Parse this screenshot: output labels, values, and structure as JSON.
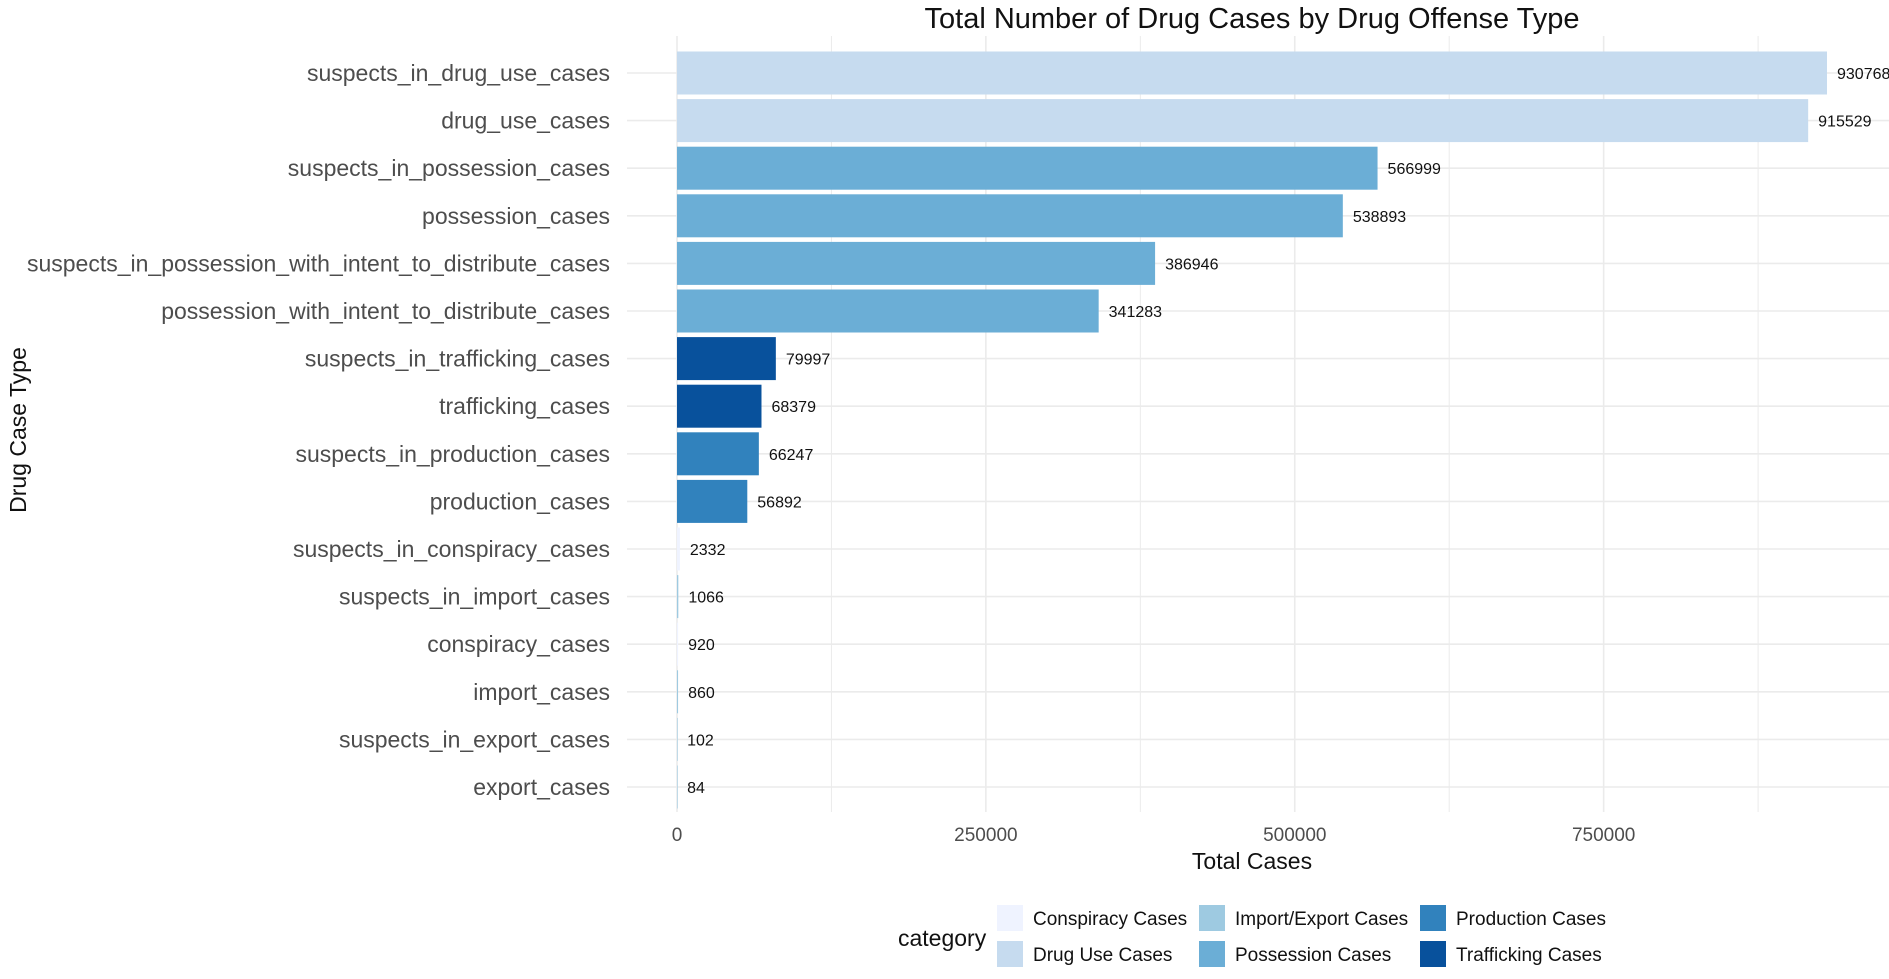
{
  "chart_data": {
    "type": "bar",
    "orientation": "horizontal",
    "title": "Total Number of Drug Cases by Drug Offense Type",
    "xlabel": "Total Cases",
    "ylabel": "Drug Case Type",
    "xlim": [
      0,
      930768
    ],
    "x_ticks": [
      0,
      250000,
      500000,
      750000
    ],
    "x_tick_labels": [
      "0",
      "250000",
      "500000",
      "750000"
    ],
    "grid": true,
    "categories": [
      "suspects_in_drug_use_cases",
      "drug_use_cases",
      "suspects_in_possession_cases",
      "possession_cases",
      "suspects_in_possession_with_intent_to_distribute_cases",
      "possession_with_intent_to_distribute_cases",
      "suspects_in_trafficking_cases",
      "trafficking_cases",
      "suspects_in_production_cases",
      "production_cases",
      "suspects_in_conspiracy_cases",
      "suspects_in_import_cases",
      "conspiracy_cases",
      "import_cases",
      "suspects_in_export_cases",
      "export_cases"
    ],
    "values": [
      930768,
      915529,
      566999,
      538893,
      386946,
      341283,
      79997,
      68379,
      66247,
      56892,
      2332,
      1066,
      920,
      860,
      102,
      84
    ],
    "value_labels": [
      "930768",
      "915529",
      "566999",
      "538893",
      "386946",
      "341283",
      "79997",
      "68379",
      "66247",
      "56892",
      "2332",
      "1066",
      "920",
      "860",
      "102",
      "84"
    ],
    "bar_category": [
      "Drug Use Cases",
      "Drug Use Cases",
      "Possession Cases",
      "Possession Cases",
      "Possession Cases",
      "Possession Cases",
      "Trafficking Cases",
      "Trafficking Cases",
      "Production Cases",
      "Production Cases",
      "Conspiracy Cases",
      "Import/Export Cases",
      "Conspiracy Cases",
      "Import/Export Cases",
      "Import/Export Cases",
      "Import/Export Cases"
    ],
    "legend": {
      "title": "category",
      "position": "bottom",
      "entries": [
        {
          "name": "Conspiracy Cases",
          "color": "#eff3ff"
        },
        {
          "name": "Drug Use Cases",
          "color": "#c6dbef"
        },
        {
          "name": "Import/Export Cases",
          "color": "#9ecae1"
        },
        {
          "name": "Possession Cases",
          "color": "#6baed6"
        },
        {
          "name": "Production Cases",
          "color": "#3182bd"
        },
        {
          "name": "Trafficking Cases",
          "color": "#08519c"
        }
      ]
    }
  }
}
